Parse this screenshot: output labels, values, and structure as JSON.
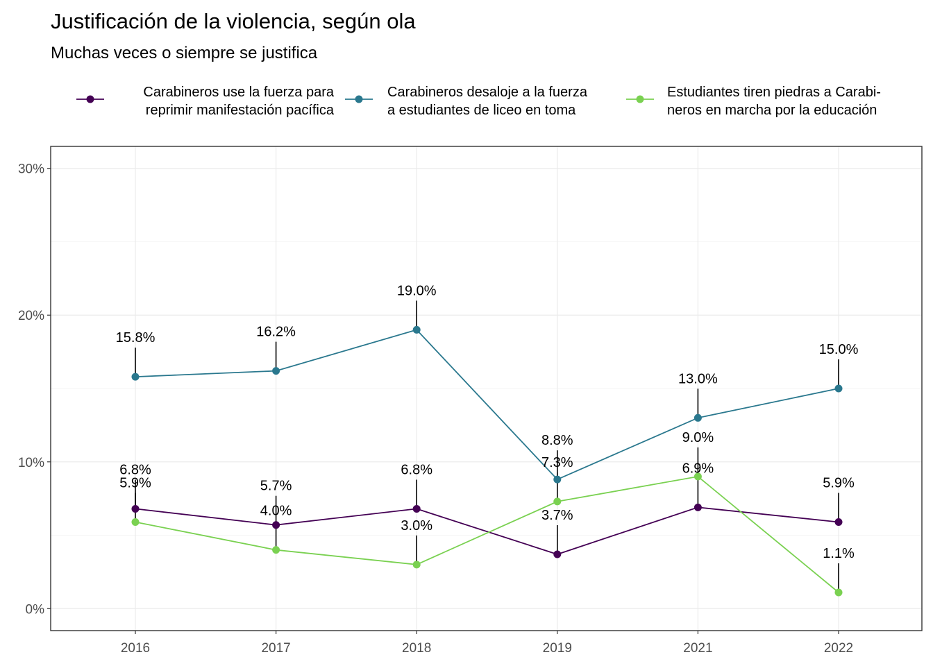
{
  "chart_data": {
    "type": "line",
    "title": "Justificación de la violencia, según ola",
    "subtitle": "Muchas veces o siempre se justifica",
    "xlabel": "",
    "ylabel": "",
    "categories": [
      "2016",
      "2017",
      "2018",
      "2019",
      "2021",
      "2022"
    ],
    "ylim": [
      -1.5,
      31.5
    ],
    "yticks": [
      0,
      10,
      20,
      30
    ],
    "ytick_labels": [
      "0%",
      "10%",
      "20%",
      "30%"
    ],
    "grid": true,
    "legend_position": "top",
    "series": [
      {
        "name_lines": [
          "Carabineros use la fuerza para",
          "reprimir manifestación pacífica"
        ],
        "color": "#440154",
        "values": [
          6.8,
          5.7,
          6.8,
          3.7,
          6.9,
          5.9
        ],
        "labels": [
          "6.8%",
          "5.7%",
          "6.8%",
          "3.7%",
          "6.9%",
          "5.9%"
        ]
      },
      {
        "name_lines": [
          "Carabineros desaloje a la fuerza",
          "a estudiantes de liceo en toma"
        ],
        "color": "#2a788e",
        "values": [
          15.8,
          16.2,
          19.0,
          8.8,
          13.0,
          15.0
        ],
        "labels": [
          "15.8%",
          "16.2%",
          "19.0%",
          "8.8%",
          "13.0%",
          "15.0%"
        ]
      },
      {
        "name_lines": [
          "Estudiantes tiren piedras a Carabi-",
          "neros en marcha por la educación"
        ],
        "color": "#7ad151",
        "values": [
          5.9,
          4.0,
          3.0,
          7.3,
          9.0,
          1.1
        ],
        "labels": [
          "5.9%",
          "4.0%",
          "3.0%",
          "7.3%",
          "9.0%",
          "1.1%"
        ]
      }
    ]
  }
}
